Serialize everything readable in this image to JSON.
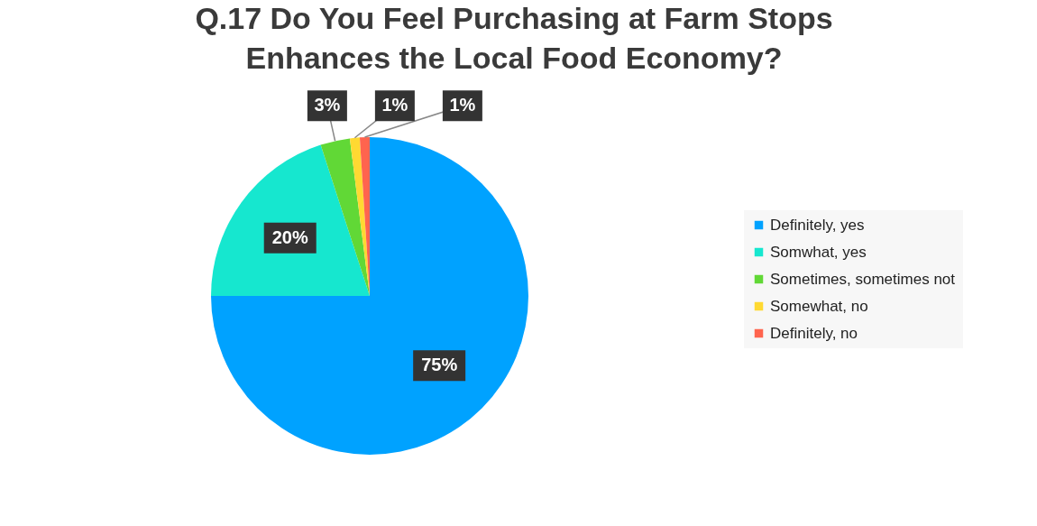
{
  "chart_data": {
    "type": "pie",
    "title": "Q.17 Do You Feel Purchasing at Farm Stops Enhances the Local Food Economy?",
    "categories": [
      "Definitely, yes",
      "Somwhat, yes",
      "Sometimes, sometimes not",
      "Somewhat, no",
      "Definitely, no"
    ],
    "values": [
      75,
      20,
      3,
      1,
      1
    ],
    "colors": [
      "#00a2ff",
      "#16e7cf",
      "#61d836",
      "#ffd932",
      "#ff644e"
    ],
    "value_labels": [
      "75%",
      "20%",
      "3%",
      "1%",
      "1%"
    ],
    "legend": "right"
  }
}
